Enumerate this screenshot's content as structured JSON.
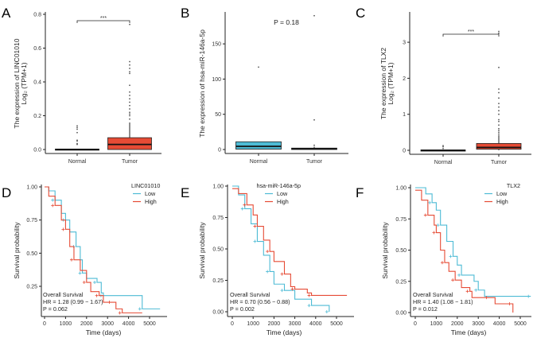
{
  "colors": {
    "blue": "#4dbbd5",
    "red": "#e64b35",
    "axis": "#222222"
  },
  "chart_data": [
    {
      "panel": "A",
      "type": "box",
      "ylabel": [
        "The expression of LINC01010",
        "Log₂ (TPM+1)"
      ],
      "categories": [
        "Normal",
        "Tumor"
      ],
      "ylim": [
        0,
        0.8
      ],
      "yticks": [
        "0.0",
        "0.2",
        "0.4",
        "0.6",
        "0.8"
      ],
      "ytick_values": [
        0,
        0.2,
        0.4,
        0.6,
        0.8
      ],
      "significance": "***",
      "boxes": [
        {
          "category": "Normal",
          "q1": 0,
          "median": 0,
          "q3": 0.003,
          "whisker_low": 0,
          "whisker_high": 0.005,
          "fill": "#000000",
          "outliers": [
            0.03,
            0.035,
            0.05,
            0.055,
            0.1,
            0.12,
            0.13,
            0.14
          ]
        },
        {
          "category": "Tumor",
          "q1": 0,
          "median": 0.03,
          "q3": 0.07,
          "whisker_low": 0,
          "whisker_high": 0.16,
          "fill": "#e64b35",
          "outliers": [
            0.18,
            0.2,
            0.21,
            0.22,
            0.24,
            0.26,
            0.28,
            0.3,
            0.32,
            0.34,
            0.38,
            0.45,
            0.46,
            0.48,
            0.5,
            0.52,
            0.74
          ]
        }
      ]
    },
    {
      "panel": "B",
      "type": "box",
      "ylabel": [
        "The expression of hsa-miR-146a-5p"
      ],
      "categories": [
        "Normal",
        "Tumor"
      ],
      "ylim": [
        0,
        195
      ],
      "yticks": [
        "0",
        "50",
        "100",
        "150"
      ],
      "ytick_values": [
        0,
        50,
        100,
        150
      ],
      "pvalue": "P = 0.18",
      "boxes": [
        {
          "category": "Normal",
          "q1": 0.5,
          "median": 4.5,
          "q3": 11,
          "whisker_low": 0,
          "whisker_high": 11,
          "fill": "#4dbbd5",
          "outliers": [
            117
          ]
        },
        {
          "category": "Tumor",
          "q1": 0,
          "median": 1,
          "q3": 2,
          "whisker_low": 0,
          "whisker_high": 4,
          "fill": "#000000",
          "outliers": [
            6,
            42,
            190
          ]
        }
      ]
    },
    {
      "panel": "C",
      "type": "box",
      "ylabel": [
        "The expression of TLX2",
        "Log₂ (TPM+1)"
      ],
      "categories": [
        "Normal",
        "Tumor"
      ],
      "ylim": [
        0,
        3.4
      ],
      "yticks": [
        "0",
        "1",
        "2",
        "3"
      ],
      "ytick_values": [
        0,
        1,
        2,
        3
      ],
      "significance": "***",
      "boxes": [
        {
          "category": "Normal",
          "q1": 0,
          "median": 0,
          "q3": 0.01,
          "whisker_low": 0,
          "whisker_high": 0.02,
          "fill": "#000000",
          "outliers": [
            0.05,
            0.1,
            0.13
          ]
        },
        {
          "category": "Tumor",
          "q1": 0.03,
          "median": 0.08,
          "q3": 0.19,
          "whisker_low": 0,
          "whisker_high": 0.42,
          "fill": "#e64b35",
          "outliers": [
            0.45,
            0.5,
            0.55,
            0.6,
            0.7,
            0.8,
            0.85,
            1.0,
            1.1,
            1.2,
            1.3,
            1.45,
            1.6,
            1.7,
            2.3,
            3.25,
            3.3
          ]
        }
      ]
    },
    {
      "panel": "D",
      "type": "line",
      "xlabel": "Time (days)",
      "ylabel": "Survival probability",
      "xlim": [
        0,
        5500
      ],
      "xticks": [
        "0",
        "1000",
        "2000",
        "3000",
        "4000",
        "5000"
      ],
      "xtick_values": [
        0,
        1000,
        2000,
        3000,
        4000,
        5000
      ],
      "ylim": [
        0,
        1
      ],
      "yticks": [
        "0.25",
        "0.50",
        "0.75",
        "1.00"
      ],
      "ytick_values": [
        0.25,
        0.5,
        0.75,
        1
      ],
      "legend_title": "LINC01010",
      "legend_position": "top-right",
      "annotation": [
        "Overall Survival",
        "HR = 1.28 (0.99 − 1.67)",
        "P = 0.062"
      ],
      "series": [
        {
          "name": "Low",
          "color": "#4dbbd5",
          "points": [
            [
              0,
              1
            ],
            [
              200,
              0.97
            ],
            [
              500,
              0.9
            ],
            [
              800,
              0.8
            ],
            [
              1000,
              0.75
            ],
            [
              1200,
              0.66
            ],
            [
              1500,
              0.55
            ],
            [
              1700,
              0.45
            ],
            [
              1800,
              0.35
            ],
            [
              2000,
              0.31
            ],
            [
              2500,
              0.28
            ],
            [
              2700,
              0.2
            ],
            [
              2800,
              0.18
            ],
            [
              4600,
              0.18
            ],
            [
              4650,
              0.08
            ],
            [
              5500,
              0.08
            ]
          ]
        },
        {
          "name": "High",
          "color": "#e64b35",
          "points": [
            [
              0,
              1
            ],
            [
              200,
              0.93
            ],
            [
              500,
              0.86
            ],
            [
              800,
              0.75
            ],
            [
              1000,
              0.68
            ],
            [
              1200,
              0.55
            ],
            [
              1400,
              0.45
            ],
            [
              1700,
              0.37
            ],
            [
              2000,
              0.28
            ],
            [
              2200,
              0.21
            ],
            [
              2600,
              0.18
            ],
            [
              2800,
              0.13
            ],
            [
              3200,
              0.13
            ],
            [
              3400,
              0.08
            ],
            [
              3700,
              0.05
            ],
            [
              4650,
              0.05
            ]
          ]
        }
      ]
    },
    {
      "panel": "E",
      "type": "line",
      "xlabel": "Time (days)",
      "ylabel": "Survival probability",
      "xlim": [
        0,
        5500
      ],
      "xticks": [
        "0",
        "1000",
        "2000",
        "3000",
        "4000",
        "5000"
      ],
      "xtick_values": [
        0,
        1000,
        2000,
        3000,
        4000,
        5000
      ],
      "ylim": [
        0,
        1
      ],
      "yticks": [
        "0.00",
        "0.25",
        "0.50",
        "0.75",
        "1.00"
      ],
      "ytick_values": [
        0,
        0.25,
        0.5,
        0.75,
        1
      ],
      "legend_title": "hsa-miR-146a-5p",
      "legend_position": "top-right",
      "annotation": [
        "Overall Survival",
        "HR = 0.70 (0.56 − 0.88)",
        "P = 0.002"
      ],
      "series": [
        {
          "name": "Low",
          "color": "#4dbbd5",
          "points": [
            [
              0,
              1
            ],
            [
              300,
              0.93
            ],
            [
              600,
              0.82
            ],
            [
              900,
              0.7
            ],
            [
              1200,
              0.56
            ],
            [
              1500,
              0.45
            ],
            [
              1800,
              0.32
            ],
            [
              2000,
              0.22
            ],
            [
              2500,
              0.17
            ],
            [
              3000,
              0.1
            ],
            [
              3800,
              0.05
            ],
            [
              4650,
              0.05
            ],
            [
              4650,
              0
            ]
          ]
        },
        {
          "name": "High",
          "color": "#e64b35",
          "points": [
            [
              0,
              0.98
            ],
            [
              300,
              0.94
            ],
            [
              700,
              0.85
            ],
            [
              1000,
              0.77
            ],
            [
              1200,
              0.68
            ],
            [
              1500,
              0.57
            ],
            [
              1800,
              0.48
            ],
            [
              2000,
              0.4
            ],
            [
              2500,
              0.3
            ],
            [
              2800,
              0.2
            ],
            [
              3000,
              0.18
            ],
            [
              3600,
              0.15
            ],
            [
              3800,
              0.13
            ],
            [
              5500,
              0.13
            ]
          ]
        }
      ]
    },
    {
      "panel": "F",
      "type": "line",
      "xlabel": "Time (days)",
      "ylabel": "Survival probability",
      "xlim": [
        0,
        5500
      ],
      "xticks": [
        "0",
        "1000",
        "2000",
        "3000",
        "4000",
        "5000"
      ],
      "xtick_values": [
        0,
        1000,
        2000,
        3000,
        4000,
        5000
      ],
      "ylim": [
        0,
        1
      ],
      "yticks": [
        "0.00",
        "0.25",
        "0.50",
        "0.75",
        "1.00"
      ],
      "ytick_values": [
        0,
        0.25,
        0.5,
        0.75,
        1
      ],
      "legend_title": "TLX2",
      "legend_position": "top-right",
      "annotation": [
        "Overall Survival",
        "HR = 1.40 (1.08 − 1.81)",
        "P = 0.012"
      ],
      "series": [
        {
          "name": "Low",
          "color": "#4dbbd5",
          "points": [
            [
              0,
              1
            ],
            [
              500,
              0.95
            ],
            [
              800,
              0.88
            ],
            [
              1000,
              0.82
            ],
            [
              1200,
              0.7
            ],
            [
              1500,
              0.57
            ],
            [
              1800,
              0.45
            ],
            [
              2000,
              0.38
            ],
            [
              2200,
              0.3
            ],
            [
              2800,
              0.25
            ],
            [
              3000,
              0.18
            ],
            [
              3300,
              0.13
            ],
            [
              5500,
              0.13
            ]
          ]
        },
        {
          "name": "High",
          "color": "#e64b35",
          "points": [
            [
              0,
              0.98
            ],
            [
              300,
              0.9
            ],
            [
              600,
              0.78
            ],
            [
              900,
              0.7
            ],
            [
              1000,
              0.64
            ],
            [
              1200,
              0.5
            ],
            [
              1400,
              0.4
            ],
            [
              1600,
              0.33
            ],
            [
              1900,
              0.26
            ],
            [
              2200,
              0.2
            ],
            [
              2600,
              0.17
            ],
            [
              2700,
              0.12
            ],
            [
              3500,
              0.12
            ],
            [
              3800,
              0.07
            ],
            [
              4600,
              0.07
            ],
            [
              4650,
              0
            ]
          ]
        }
      ]
    }
  ]
}
